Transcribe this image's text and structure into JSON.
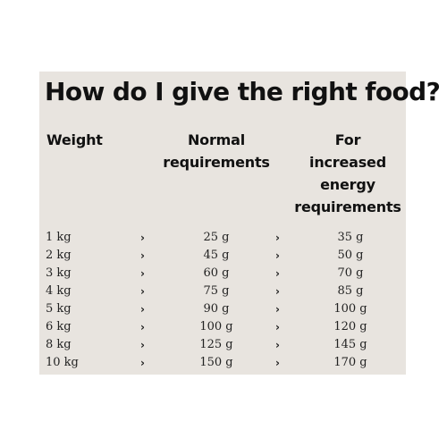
{
  "title": "How do I give the right food?",
  "headers": {
    "weight": "Weight",
    "normal_line1": "Normal",
    "normal_line2": "requirements",
    "increased_line1": "For",
    "increased_line2": "increased",
    "increased_line3": "energy",
    "increased_line4": "requirements"
  },
  "arrow_glyph": "›",
  "rows": [
    {
      "weight": "1 kg",
      "normal": "25 g",
      "increased": "35 g"
    },
    {
      "weight": "2 kg",
      "normal": "45 g",
      "increased": "50 g"
    },
    {
      "weight": "3 kg",
      "normal": "60 g",
      "increased": "70 g"
    },
    {
      "weight": "4 kg",
      "normal": "75 g",
      "increased": "85 g"
    },
    {
      "weight": "5 kg",
      "normal": "90 g",
      "increased": "100 g"
    },
    {
      "weight": "6 kg",
      "normal": "100 g",
      "increased": "120 g"
    },
    {
      "weight": "8 kg",
      "normal": "125 g",
      "increased": "145 g"
    },
    {
      "weight": "10 kg",
      "normal": "150 g",
      "increased": "170 g"
    }
  ],
  "colors": {
    "panel_background": "#e8e4df",
    "text": "#111111"
  }
}
